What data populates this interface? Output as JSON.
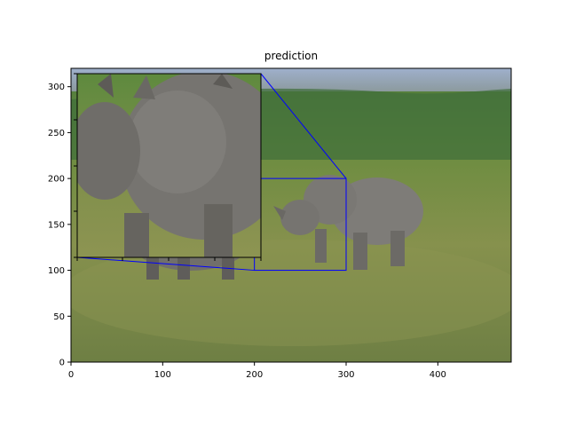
{
  "chart_data": {
    "type": "image",
    "title": "prediction",
    "xlabel": "",
    "ylabel": "",
    "xlim": [
      0,
      480
    ],
    "ylim": [
      0,
      320
    ],
    "x_ticks": [
      0,
      100,
      200,
      300,
      400
    ],
    "y_ticks": [
      0,
      50,
      100,
      150,
      200,
      250,
      300
    ],
    "zoom_region": {
      "x": [
        200,
        300
      ],
      "y": [
        100,
        200
      ]
    },
    "colors": {
      "zoom_box": "#0000ff",
      "sky": "#8fa3bf",
      "field": "#6f8a3e",
      "rhino": "#7c7a76"
    }
  }
}
